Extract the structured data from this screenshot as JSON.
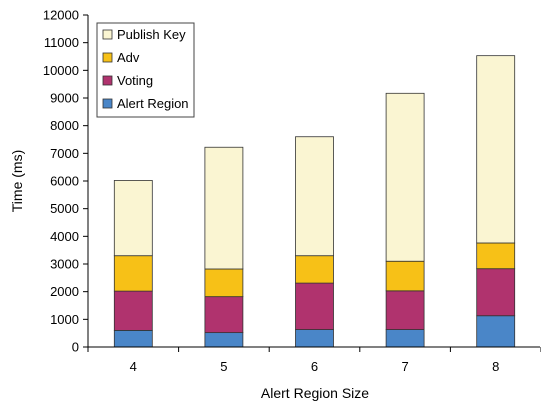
{
  "chart_data": {
    "type": "bar",
    "stacked": true,
    "categories": [
      "4",
      "5",
      "6",
      "7",
      "8"
    ],
    "series": [
      {
        "name": "Alert Region",
        "color": "#4A86C8",
        "values": [
          600,
          520,
          630,
          630,
          1130
        ]
      },
      {
        "name": "Voting",
        "color": "#B0336E",
        "values": [
          1420,
          1300,
          1680,
          1400,
          1700
        ]
      },
      {
        "name": "Adv",
        "color": "#F7C117",
        "values": [
          1280,
          1000,
          990,
          1070,
          930
        ]
      },
      {
        "name": "Publish Key",
        "color": "#FAF5D2",
        "values": [
          2720,
          4400,
          4300,
          6070,
          6770
        ]
      }
    ],
    "title": "",
    "xlabel": "Alert Region Size",
    "ylabel": "Time (ms)",
    "ylim": [
      0,
      12000
    ],
    "ytick_step": 1000,
    "grid": false,
    "legend_position": "top-left",
    "legend_order": [
      "Publish Key",
      "Adv",
      "Voting",
      "Alert Region"
    ]
  }
}
